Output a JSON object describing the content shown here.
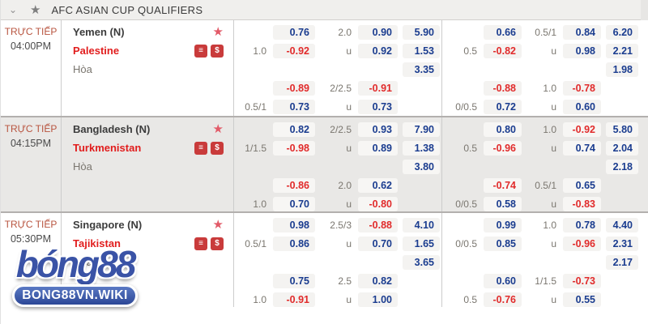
{
  "header": {
    "title": "AFC ASIAN CUP QUALIFIERS"
  },
  "labels": {
    "live": "TRỰC TIẾP",
    "draw": "Hòa"
  },
  "icons": {
    "chevron_down": "⌄",
    "header_star": "★",
    "favorite_star": "★",
    "coins_badge": "≡",
    "dollar_badge": "$"
  },
  "colors": {
    "odds_positive": "#1a3c8f",
    "odds_negative": "#e12b2b",
    "team_away": "#e11d1d",
    "live": "#b8543f",
    "favorite_star": "#e25a68",
    "badge": "#c93b3b"
  },
  "watermark": {
    "logo": "bóng88",
    "site": "BONG88VN.WIKI"
  },
  "matches": [
    {
      "time": "04:00PM",
      "home": "Yemen (N)",
      "away": "Palestine",
      "striped": false,
      "left": [
        [
          "",
          "0.76",
          "2.0",
          "0.90",
          "5.90"
        ],
        [
          "1.0",
          "-0.92",
          "u",
          "0.92",
          "1.53"
        ],
        [
          "",
          "",
          "",
          "",
          "3.35"
        ],
        [
          "",
          "-0.89",
          "2/2.5",
          "-0.91",
          ""
        ],
        [
          "0.5/1",
          "0.73",
          "u",
          "0.73",
          ""
        ]
      ],
      "right": [
        [
          "",
          "0.66",
          "0.5/1",
          "0.84",
          "6.20"
        ],
        [
          "0.5",
          "-0.82",
          "u",
          "0.98",
          "2.21"
        ],
        [
          "",
          "",
          "",
          "",
          "1.98"
        ],
        [
          "",
          "-0.88",
          "1.0",
          "-0.78",
          ""
        ],
        [
          "0/0.5",
          "0.72",
          "u",
          "0.60",
          ""
        ]
      ]
    },
    {
      "time": "04:15PM",
      "home": "Bangladesh (N)",
      "away": "Turkmenistan",
      "striped": true,
      "left": [
        [
          "",
          "0.82",
          "2/2.5",
          "0.93",
          "7.90"
        ],
        [
          "1/1.5",
          "-0.98",
          "u",
          "0.89",
          "1.38"
        ],
        [
          "",
          "",
          "",
          "",
          "3.80"
        ],
        [
          "",
          "-0.86",
          "2.0",
          "0.62",
          ""
        ],
        [
          "1.0",
          "0.70",
          "u",
          "-0.80",
          ""
        ]
      ],
      "right": [
        [
          "",
          "0.80",
          "1.0",
          "-0.92",
          "5.80"
        ],
        [
          "0.5",
          "-0.96",
          "u",
          "0.74",
          "2.04"
        ],
        [
          "",
          "",
          "",
          "",
          "2.18"
        ],
        [
          "",
          "-0.74",
          "0.5/1",
          "0.65",
          ""
        ],
        [
          "0/0.5",
          "0.58",
          "u",
          "-0.83",
          ""
        ]
      ]
    },
    {
      "time": "05:30PM",
      "home": "Singapore (N)",
      "away": "Tajikistan",
      "striped": false,
      "left": [
        [
          "",
          "0.98",
          "2.5/3",
          "-0.88",
          "4.10"
        ],
        [
          "0.5/1",
          "0.86",
          "u",
          "0.70",
          "1.65"
        ],
        [
          "",
          "",
          "",
          "",
          "3.65"
        ],
        [
          "",
          "0.75",
          "2.5",
          "0.82",
          ""
        ],
        [
          "1.0",
          "-0.91",
          "u",
          "1.00",
          ""
        ]
      ],
      "right": [
        [
          "",
          "0.99",
          "1.0",
          "0.78",
          "4.40"
        ],
        [
          "0/0.5",
          "0.85",
          "u",
          "-0.96",
          "2.31"
        ],
        [
          "",
          "",
          "",
          "",
          "2.17"
        ],
        [
          "",
          "0.60",
          "1/1.5",
          "-0.73",
          ""
        ],
        [
          "0.5",
          "-0.76",
          "u",
          "0.55",
          ""
        ]
      ]
    }
  ]
}
